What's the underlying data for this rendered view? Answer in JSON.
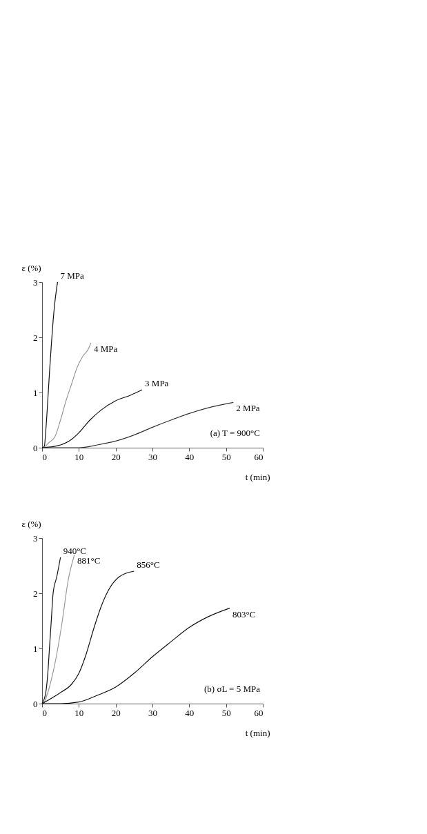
{
  "chart_data": [
    {
      "type": "line",
      "xlabel": "t (min)",
      "ylabel": "ε (%)",
      "xlim": [
        0,
        60
      ],
      "xticks": [
        0,
        10,
        20,
        30,
        40,
        50,
        60
      ],
      "ylim": [
        0,
        3
      ],
      "yticks": [
        0,
        1,
        2,
        3
      ],
      "grid": false,
      "annotations": [
        "(a) T = 900°C"
      ],
      "series": [
        {
          "name": "7 MPa",
          "color": "#111111",
          "x": [
            0,
            0.6,
            1,
            1.5,
            2,
            2.5,
            3,
            3.5,
            4.2
          ],
          "values": [
            0,
            0.02,
            0.3,
            0.8,
            1.35,
            1.85,
            2.3,
            2.65,
            3.0
          ]
        },
        {
          "name": "4 MPa",
          "color": "#999999",
          "x": [
            0.5,
            2,
            3.5,
            5,
            6.5,
            8,
            9.5,
            11,
            12.5,
            13.3
          ],
          "values": [
            0,
            0.1,
            0.2,
            0.5,
            0.85,
            1.15,
            1.45,
            1.65,
            1.78,
            1.9
          ]
        },
        {
          "name": "3 MPa",
          "color": "#111111",
          "x": [
            0,
            3,
            5,
            8,
            10,
            13,
            16,
            20,
            24,
            27.2
          ],
          "values": [
            0,
            0.02,
            0.05,
            0.15,
            0.27,
            0.5,
            0.68,
            0.85,
            0.95,
            1.05
          ]
        },
        {
          "name": "2 MPa",
          "color": "#333333",
          "x": [
            0,
            10,
            15,
            20,
            25,
            30,
            35,
            40,
            45,
            52
          ],
          "values": [
            0,
            0,
            0.05,
            0.12,
            0.23,
            0.37,
            0.5,
            0.62,
            0.72,
            0.82
          ]
        }
      ]
    },
    {
      "type": "line",
      "xlabel": "t (min)",
      "ylabel": "ε (%)",
      "xlim": [
        0,
        60
      ],
      "xticks": [
        0,
        10,
        20,
        30,
        40,
        50,
        60
      ],
      "ylim": [
        0,
        3
      ],
      "yticks": [
        0,
        1,
        2,
        3
      ],
      "grid": false,
      "annotations": [
        "(b) σL = 5 MPa"
      ],
      "series": [
        {
          "name": "940°C",
          "color": "#111111",
          "x": [
            0,
            1,
            1.5,
            2,
            2.5,
            3,
            4,
            5
          ],
          "values": [
            0,
            0.2,
            0.5,
            1.0,
            1.5,
            2.0,
            2.3,
            2.65
          ]
        },
        {
          "name": "881°C",
          "color": "#999999",
          "x": [
            0.5,
            2,
            4,
            5.5,
            7,
            8.8
          ],
          "values": [
            0,
            0.3,
            0.9,
            1.5,
            2.2,
            2.7
          ]
        },
        {
          "name": "856°C",
          "color": "#111111",
          "x": [
            0,
            5,
            8,
            10,
            12,
            14,
            16,
            18,
            21,
            25
          ],
          "values": [
            0,
            0.2,
            0.35,
            0.55,
            0.9,
            1.35,
            1.75,
            2.05,
            2.3,
            2.4
          ]
        },
        {
          "name": "803°C",
          "color": "#111111",
          "x": [
            0,
            5,
            10,
            15,
            20,
            25,
            30,
            35,
            40,
            45,
            51
          ],
          "values": [
            0,
            0,
            0.03,
            0.15,
            0.3,
            0.55,
            0.85,
            1.12,
            1.38,
            1.57,
            1.73
          ]
        }
      ]
    }
  ]
}
